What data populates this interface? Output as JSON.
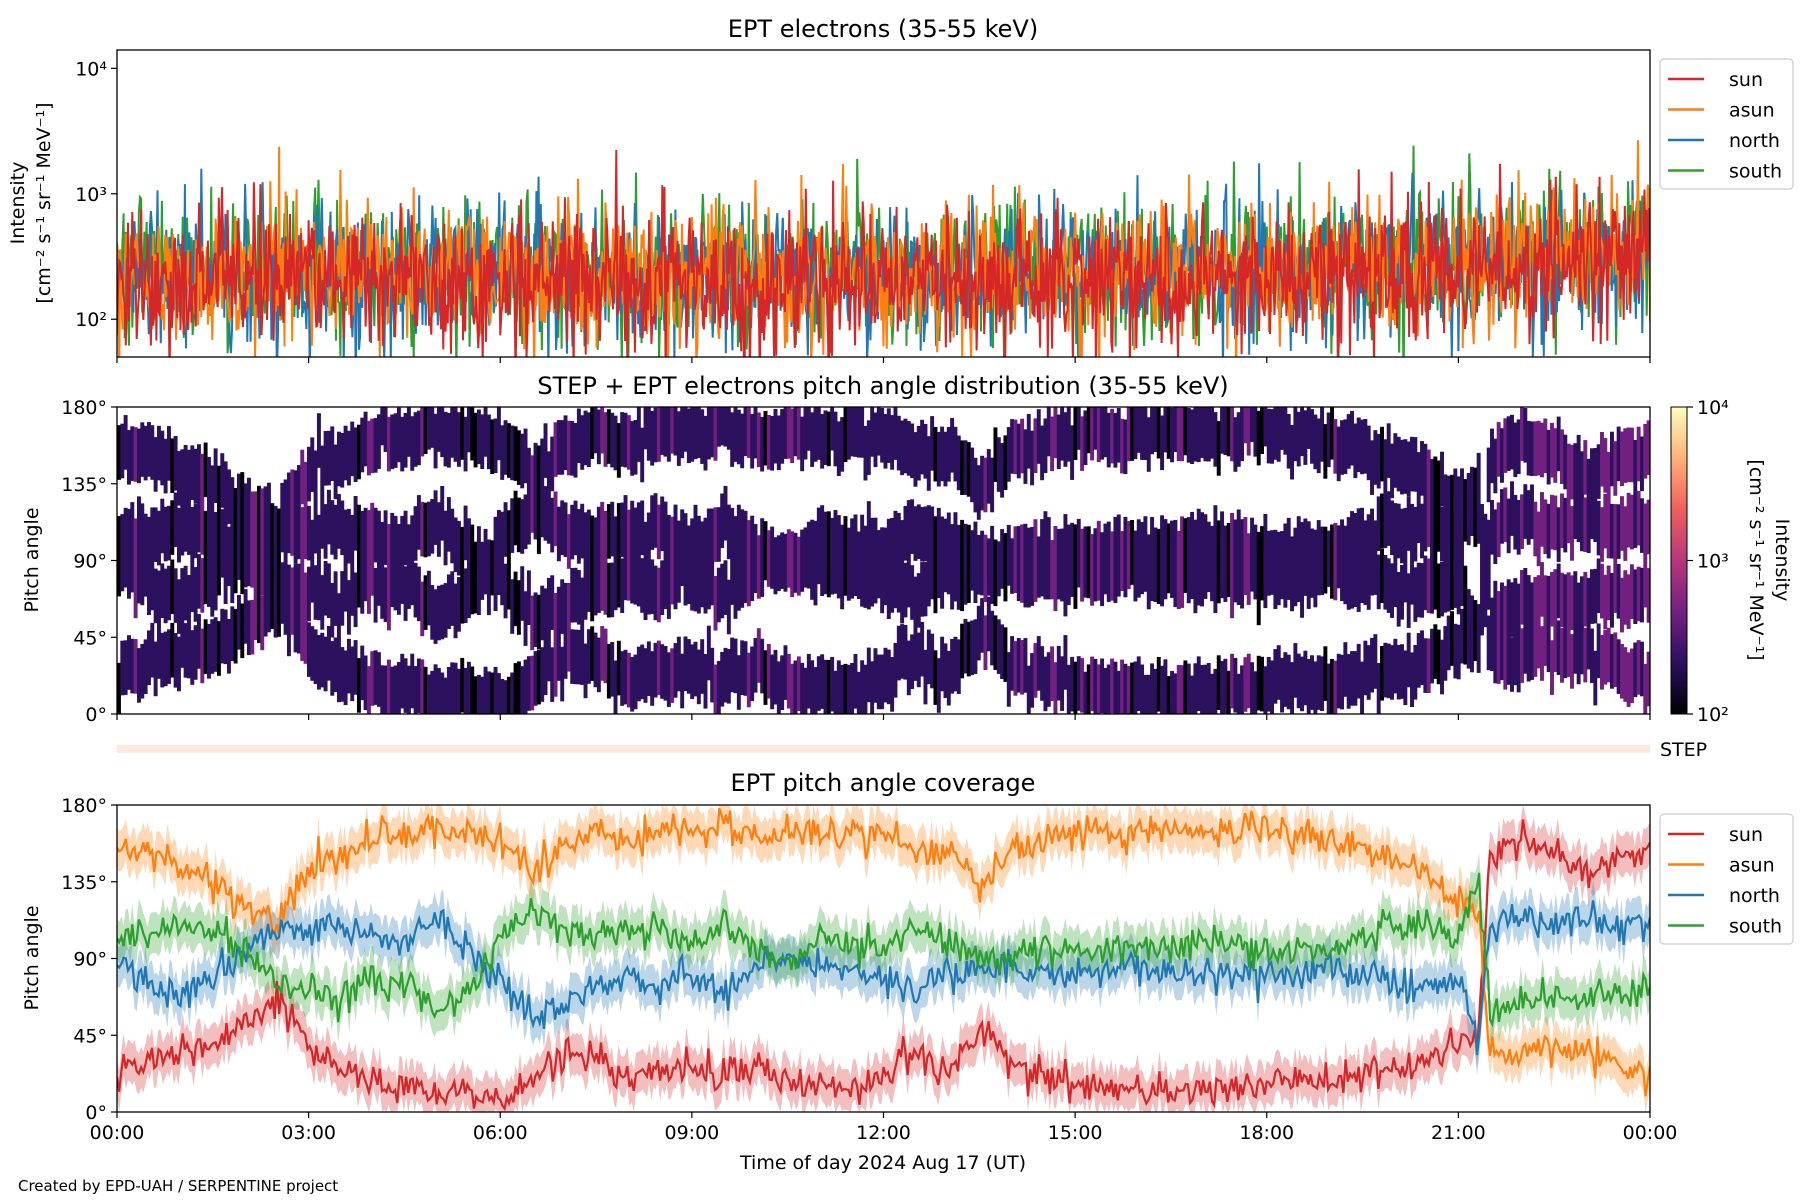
{
  "credit": "Created by EPD-UAH / SERPENTINE project",
  "colors": {
    "sun": "#d62728",
    "asun": "#ff7f0e",
    "north": "#1f77b4",
    "south": "#2ca02c"
  },
  "chart_data": [
    {
      "id": "intensity",
      "type": "line",
      "title": "EPT electrons (35-55 keV)",
      "ylabel_line1": "Intensity",
      "ylabel_line2": "[cm⁻² s⁻¹ sr⁻¹ MeV⁻¹]",
      "yscale": "log",
      "ylim": [
        50,
        14000
      ],
      "yticks": [
        {
          "value": 100,
          "label": "10²"
        },
        {
          "value": 1000,
          "label": "10³"
        },
        {
          "value": 10000,
          "label": "10⁴"
        }
      ],
      "x_hours": [
        0,
        24
      ],
      "legend": {
        "placement": "outside-right",
        "entries": [
          "sun",
          "asun",
          "north",
          "south"
        ]
      },
      "series": [
        {
          "name": "sun",
          "x_hours": [
            0,
            3,
            6,
            9,
            12,
            15,
            18,
            21,
            23,
            24
          ],
          "values": [
            200,
            210,
            200,
            190,
            190,
            200,
            210,
            230,
            330,
            320
          ]
        },
        {
          "name": "asun",
          "x_hours": [
            0,
            3,
            6,
            9,
            12,
            15,
            18,
            21,
            23,
            24
          ],
          "values": [
            230,
            230,
            230,
            220,
            220,
            230,
            240,
            260,
            360,
            350
          ]
        },
        {
          "name": "north",
          "x_hours": [
            0,
            3,
            6,
            9,
            12,
            15,
            18,
            21,
            23,
            24
          ],
          "values": [
            240,
            240,
            240,
            230,
            230,
            240,
            250,
            260,
            320,
            310
          ]
        },
        {
          "name": "south",
          "x_hours": [
            0,
            3,
            6,
            9,
            12,
            15,
            18,
            21,
            23,
            24
          ],
          "values": [
            250,
            250,
            250,
            240,
            240,
            250,
            260,
            270,
            340,
            330
          ]
        }
      ]
    },
    {
      "id": "pad",
      "type": "heatmap",
      "title": "STEP + EPT electrons pitch angle distribution (35-55 keV)",
      "ylabel": "Pitch angle",
      "ylim": [
        0,
        180
      ],
      "yticks": [
        {
          "value": 0,
          "label": "0°"
        },
        {
          "value": 45,
          "label": "45°"
        },
        {
          "value": 90,
          "label": "90°"
        },
        {
          "value": 135,
          "label": "135°"
        },
        {
          "value": 180,
          "label": "180°"
        }
      ],
      "x_hours": [
        0,
        24
      ],
      "colorbar": {
        "label_line1": "Intensity",
        "label_line2": "[cm⁻² s⁻¹ sr⁻¹ MeV⁻¹]",
        "scale": "log",
        "range": [
          100,
          10000
        ],
        "ticks": [
          {
            "value": 100,
            "label": "10²"
          },
          {
            "value": 1000,
            "label": "10³"
          },
          {
            "value": 10000,
            "label": "10⁴"
          }
        ],
        "colormap": [
          "#000004",
          "#2c115f",
          "#721f81",
          "#b73779",
          "#f1605d",
          "#feb078",
          "#fcfdbf"
        ]
      }
    },
    {
      "id": "step",
      "type": "other",
      "label": "STEP"
    },
    {
      "id": "coverage",
      "type": "line",
      "title": "EPT pitch angle coverage",
      "ylabel": "Pitch angle",
      "xlabel": "Time of day 2024 Aug 17 (UT)",
      "ylim": [
        0,
        180
      ],
      "yticks": [
        {
          "value": 0,
          "label": "0°"
        },
        {
          "value": 45,
          "label": "45°"
        },
        {
          "value": 90,
          "label": "90°"
        },
        {
          "value": 135,
          "label": "135°"
        },
        {
          "value": 180,
          "label": "180°"
        }
      ],
      "xticks": [
        {
          "value": 0,
          "label": "00:00"
        },
        {
          "value": 3,
          "label": "03:00"
        },
        {
          "value": 6,
          "label": "06:00"
        },
        {
          "value": 9,
          "label": "09:00"
        },
        {
          "value": 12,
          "label": "12:00"
        },
        {
          "value": 15,
          "label": "15:00"
        },
        {
          "value": 18,
          "label": "18:00"
        },
        {
          "value": 21,
          "label": "21:00"
        },
        {
          "value": 24,
          "label": "00:00"
        }
      ],
      "legend": {
        "placement": "outside-right",
        "entries": [
          "sun",
          "asun",
          "north",
          "south"
        ]
      },
      "band_halfwidth_deg": 12,
      "series": [
        {
          "name": "sun",
          "x_hours": [
            0,
            0.5,
            1,
            1.5,
            2,
            2.5,
            3,
            3.5,
            4,
            4.5,
            5,
            5.5,
            6,
            6.5,
            7,
            7.5,
            8,
            8.5,
            9,
            9.5,
            10,
            10.5,
            11,
            11.5,
            12,
            12.5,
            13,
            13.5,
            14,
            15,
            16,
            17,
            18,
            19,
            20,
            20.5,
            21,
            21.3,
            21.5,
            22,
            22.5,
            23,
            23.5,
            24
          ],
          "values": [
            20,
            35,
            35,
            40,
            55,
            65,
            40,
            25,
            20,
            15,
            10,
            15,
            5,
            20,
            35,
            30,
            20,
            25,
            25,
            15,
            30,
            15,
            15,
            15,
            20,
            35,
            20,
            50,
            30,
            15,
            15,
            10,
            15,
            20,
            25,
            30,
            40,
            45,
            150,
            160,
            150,
            140,
            150,
            155
          ]
        },
        {
          "name": "asun",
          "x_hours": [
            0,
            0.5,
            1,
            1.5,
            2,
            2.5,
            3,
            3.5,
            4,
            4.5,
            5,
            5.5,
            6,
            6.5,
            7,
            7.5,
            8,
            8.5,
            9,
            9.5,
            10,
            10.5,
            11,
            11.5,
            12,
            12.5,
            13,
            13.5,
            14,
            15,
            16,
            17,
            18,
            19,
            20,
            20.5,
            21,
            21.3,
            21.5,
            22,
            22.5,
            23,
            23.5,
            24
          ],
          "values": [
            160,
            150,
            145,
            135,
            120,
            110,
            140,
            150,
            160,
            165,
            165,
            165,
            160,
            140,
            155,
            165,
            155,
            165,
            165,
            170,
            160,
            165,
            165,
            160,
            165,
            150,
            155,
            130,
            155,
            165,
            165,
            165,
            165,
            160,
            150,
            140,
            125,
            120,
            30,
            35,
            40,
            35,
            30,
            20
          ]
        },
        {
          "name": "north",
          "x_hours": [
            0,
            0.5,
            1,
            1.5,
            2,
            2.5,
            3,
            3.5,
            4,
            4.5,
            5,
            5.5,
            6,
            6.5,
            7,
            7.5,
            8,
            8.5,
            9,
            9.5,
            10,
            10.5,
            11,
            11.5,
            12,
            12.5,
            13,
            13.5,
            14,
            15,
            16,
            17,
            18,
            19,
            20,
            20.5,
            21,
            21.3,
            21.5,
            22,
            22.5,
            23,
            23.5,
            24
          ],
          "values": [
            90,
            75,
            70,
            80,
            95,
            110,
            105,
            110,
            105,
            100,
            115,
            95,
            75,
            55,
            60,
            75,
            80,
            75,
            80,
            70,
            85,
            90,
            85,
            80,
            80,
            70,
            80,
            85,
            85,
            80,
            85,
            80,
            80,
            85,
            75,
            70,
            80,
            40,
            110,
            115,
            110,
            115,
            110,
            110
          ]
        },
        {
          "name": "south",
          "x_hours": [
            0,
            0.5,
            1,
            1.5,
            2,
            2.5,
            3,
            3.5,
            4,
            4.5,
            5,
            5.5,
            6,
            6.5,
            7,
            7.5,
            8,
            8.5,
            9,
            9.5,
            10,
            10.5,
            11,
            11.5,
            12,
            12.5,
            13,
            13.5,
            14,
            15,
            16,
            17,
            18,
            19,
            20,
            20.5,
            21,
            21.3,
            21.5,
            22,
            22.5,
            23,
            23.5,
            24
          ],
          "values": [
            100,
            105,
            110,
            105,
            95,
            75,
            70,
            65,
            75,
            75,
            60,
            70,
            100,
            120,
            110,
            105,
            105,
            110,
            100,
            110,
            95,
            90,
            100,
            100,
            95,
            110,
            100,
            90,
            90,
            95,
            95,
            100,
            95,
            95,
            110,
            110,
            100,
            140,
            60,
            65,
            70,
            65,
            70,
            75
          ]
        }
      ]
    }
  ]
}
